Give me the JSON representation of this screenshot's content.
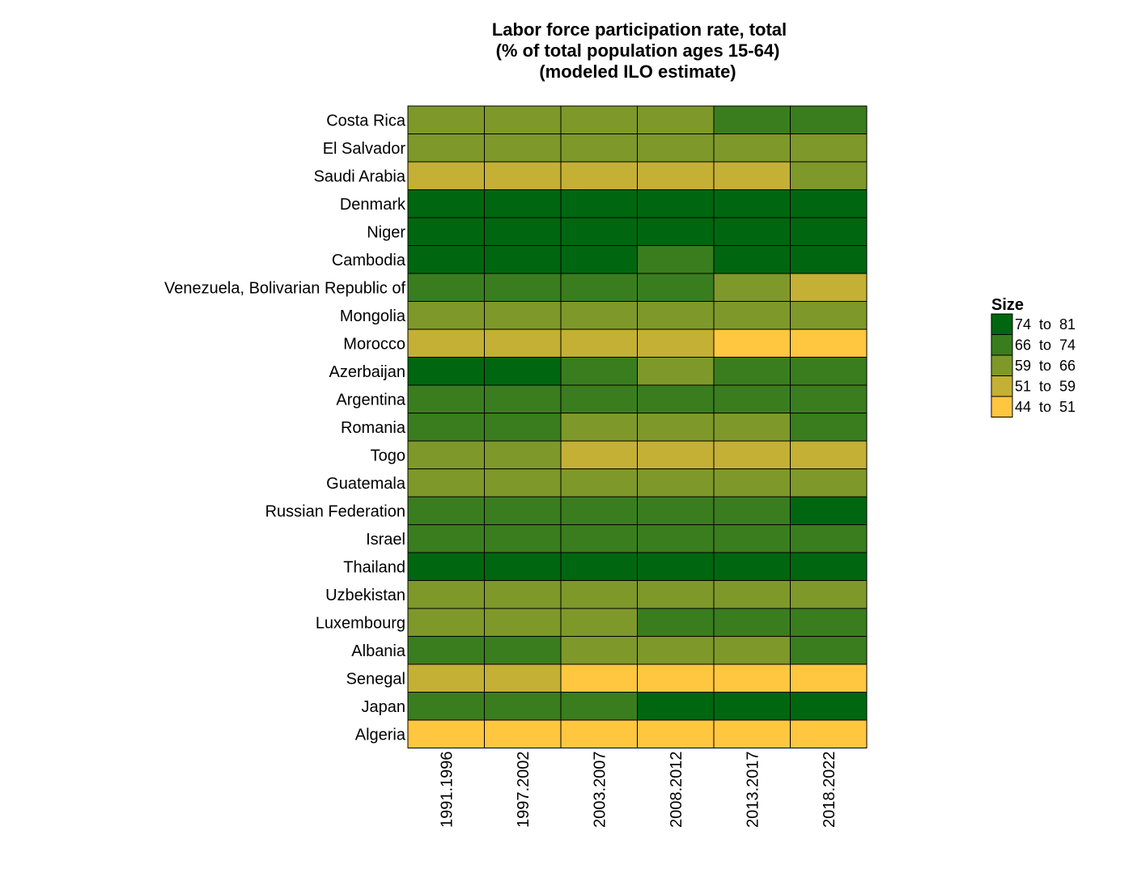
{
  "chart_data": {
    "type": "heatmap",
    "title_lines": [
      "Labor force participation rate, total",
      "(% of total population ages 15-64)",
      "(modeled ILO estimate)"
    ],
    "x": [
      "1991.1996",
      "1997.2002",
      "2003.2007",
      "2008.2012",
      "2013.2017",
      "2018.2022"
    ],
    "y": [
      "Costa Rica",
      "El Salvador",
      "Saudi Arabia",
      "Denmark",
      "Niger",
      "Cambodia",
      "Venezuela, Bolivarian Republic of",
      "Mongolia",
      "Morocco",
      "Azerbaijan",
      "Argentina",
      "Romania",
      "Togo",
      "Guatemala",
      "Russian Federation",
      "Israel",
      "Thailand",
      "Uzbekistan",
      "Luxembourg",
      "Albania",
      "Senegal",
      "Japan",
      "Algeria"
    ],
    "bins": [
      {
        "label": "74  to  81",
        "color": "#006710"
      },
      {
        "label": "66  to  74",
        "color": "#3a7d1e"
      },
      {
        "label": "59  to  66",
        "color": "#7f982a"
      },
      {
        "label": "51  to  59",
        "color": "#c3b034"
      },
      {
        "label": "44  to  51",
        "color": "#ffc640"
      }
    ],
    "cells": [
      [
        2,
        2,
        2,
        2,
        1,
        1
      ],
      [
        2,
        2,
        2,
        2,
        2,
        2
      ],
      [
        3,
        3,
        3,
        3,
        3,
        2
      ],
      [
        0,
        0,
        0,
        0,
        0,
        0
      ],
      [
        0,
        0,
        0,
        0,
        0,
        0
      ],
      [
        0,
        0,
        0,
        1,
        0,
        0
      ],
      [
        1,
        1,
        1,
        1,
        2,
        3
      ],
      [
        2,
        2,
        2,
        2,
        2,
        2
      ],
      [
        3,
        3,
        3,
        3,
        4,
        4
      ],
      [
        0,
        0,
        1,
        2,
        1,
        1
      ],
      [
        1,
        1,
        1,
        1,
        1,
        1
      ],
      [
        1,
        1,
        2,
        2,
        2,
        1
      ],
      [
        2,
        2,
        3,
        3,
        3,
        3
      ],
      [
        2,
        2,
        2,
        2,
        2,
        2
      ],
      [
        1,
        1,
        1,
        1,
        1,
        0
      ],
      [
        1,
        1,
        1,
        1,
        1,
        1
      ],
      [
        0,
        0,
        0,
        0,
        0,
        0
      ],
      [
        2,
        2,
        2,
        2,
        2,
        2
      ],
      [
        2,
        2,
        2,
        1,
        1,
        1
      ],
      [
        1,
        1,
        2,
        2,
        2,
        1
      ],
      [
        3,
        3,
        4,
        4,
        4,
        4
      ],
      [
        1,
        1,
        1,
        0,
        0,
        0
      ],
      [
        4,
        4,
        4,
        4,
        4,
        4
      ]
    ],
    "legend": {
      "title": "Size",
      "position": "right"
    },
    "grid": false
  }
}
